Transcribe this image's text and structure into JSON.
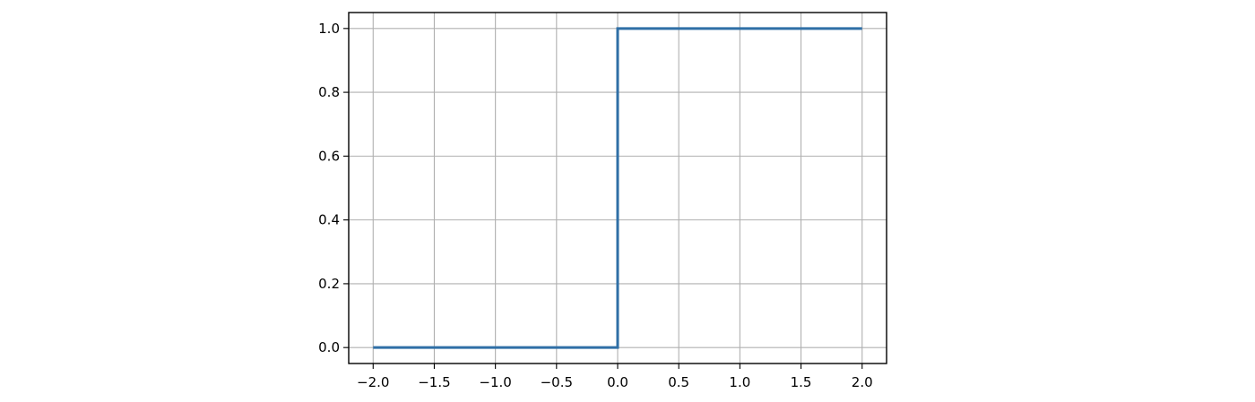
{
  "chart_data": {
    "type": "line",
    "title": "",
    "xlabel": "",
    "ylabel": "",
    "xlim": [
      -2.2,
      2.2
    ],
    "ylim": [
      -0.05,
      1.05
    ],
    "grid": true,
    "x_ticks": [
      -2.0,
      -1.5,
      -1.0,
      -0.5,
      0.0,
      0.5,
      1.0,
      1.5,
      2.0
    ],
    "x_tick_labels": [
      "−2.0",
      "−1.5",
      "−1.0",
      "−0.5",
      "0.0",
      "0.5",
      "1.0",
      "1.5",
      "2.0"
    ],
    "y_ticks": [
      0.0,
      0.2,
      0.4,
      0.6,
      0.8,
      1.0
    ],
    "y_tick_labels": [
      "0.0",
      "0.2",
      "0.4",
      "0.6",
      "0.8",
      "1.0"
    ],
    "series": [
      {
        "color": "#2f6fa6",
        "x": [
          -2.0,
          0.0,
          0.0,
          2.0
        ],
        "y": [
          0.0,
          0.0,
          1.0,
          1.0
        ]
      }
    ]
  }
}
